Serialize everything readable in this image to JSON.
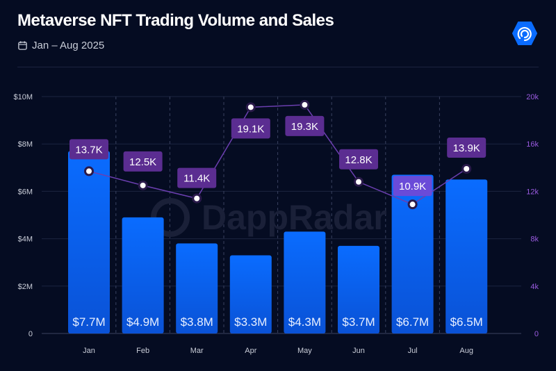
{
  "header": {
    "title": "Metaverse NFT Trading Volume and Sales",
    "date_range": "Jan – Aug 2025",
    "calendar_icon": "calendar-icon",
    "logo_icon": "dappradar-logo-icon"
  },
  "watermark": "DappRadar",
  "colors": {
    "bar": "#0a6cff",
    "line": "#6b3fb0",
    "label_bg": "#5b2d91",
    "right_axis": "#9a5be0",
    "background": "#050c22"
  },
  "chart_data": {
    "type": "bar+line",
    "title": "Metaverse NFT Trading Volume and Sales",
    "categories": [
      "Jan",
      "Feb",
      "Mar",
      "Apr",
      "May",
      "Jun",
      "Jul",
      "Aug"
    ],
    "series": [
      {
        "type": "bar",
        "axis": "left",
        "values": [
          7.7,
          4.9,
          3.8,
          3.3,
          4.3,
          3.7,
          6.7,
          6.5
        ],
        "labels": [
          "$7.7M",
          "$4.9M",
          "$3.8M",
          "$3.3M",
          "$4.3M",
          "$3.7M",
          "$6.7M",
          "$6.5M"
        ]
      },
      {
        "type": "line",
        "axis": "right",
        "values": [
          13.7,
          12.5,
          11.4,
          19.1,
          19.3,
          12.8,
          10.9,
          13.9
        ],
        "labels": [
          "13.7K",
          "12.5K",
          "11.4K",
          "19.1K",
          "19.3K",
          "12.8K",
          "10.9K",
          "13.9K"
        ]
      }
    ],
    "left_axis": {
      "ylim": [
        0,
        10
      ],
      "ticks": [
        "0",
        "$2M",
        "$4M",
        "$6M",
        "$8M",
        "$10M"
      ]
    },
    "right_axis": {
      "ylim": [
        0,
        20
      ],
      "ticks": [
        "0",
        "4k",
        "8k",
        "12k",
        "16k",
        "20k"
      ]
    },
    "grid": true,
    "legend": "none"
  }
}
